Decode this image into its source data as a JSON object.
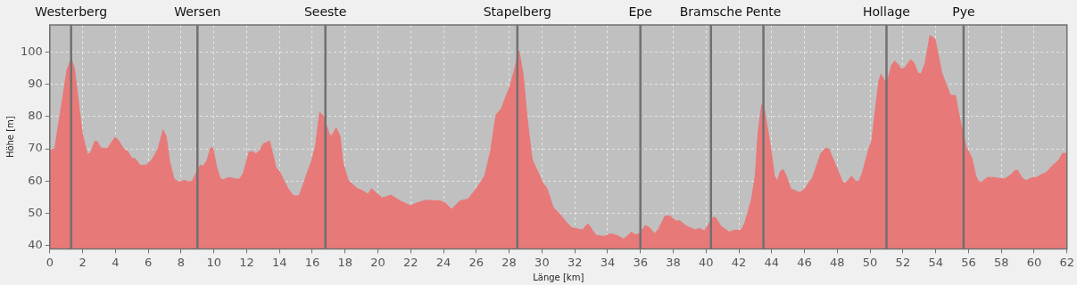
{
  "chart_data": {
    "type": "area",
    "xlabel": "Länge [km]",
    "ylabel": "Höhe [m]",
    "color": "#e87979",
    "grid": true,
    "legend": false,
    "xlim": [
      0,
      62
    ],
    "ylim": [
      38.9,
      108.5
    ],
    "xticks": [
      0,
      2,
      4,
      6,
      8,
      10,
      12,
      14,
      16,
      18,
      20,
      22,
      24,
      26,
      28,
      30,
      32,
      34,
      36,
      38,
      40,
      42,
      44,
      46,
      48,
      50,
      52,
      54,
      56,
      58,
      60,
      62
    ],
    "yticks": [
      40,
      50,
      60,
      70,
      80,
      90,
      100
    ],
    "x": [
      0,
      0.3,
      1.05,
      1.3,
      1.5,
      1.98,
      2.3,
      2.5,
      2.75,
      2.9,
      3.1,
      3.5,
      3.98,
      4.17,
      4.5,
      4.76,
      5.0,
      5.2,
      5.5,
      5.87,
      6.24,
      6.6,
      6.9,
      7.1,
      7.3,
      7.57,
      7.87,
      8.2,
      8.46,
      8.69,
      9.0,
      9.17,
      9.35,
      9.57,
      9.8,
      9.94,
      10.17,
      10.4,
      10.6,
      10.9,
      11.4,
      11.57,
      11.8,
      12.15,
      12.4,
      12.55,
      12.8,
      13.0,
      13.4,
      13.8,
      14.0,
      14.5,
      14.85,
      15.2,
      15.5,
      15.96,
      16.2,
      16.45,
      16.7,
      16.9,
      17.05,
      17.2,
      17.45,
      17.7,
      17.86,
      18.2,
      18.4,
      18.75,
      19.05,
      19.4,
      19.6,
      20.26,
      20.8,
      21.36,
      22.0,
      22.37,
      22.9,
      23.8,
      24.1,
      24.48,
      25.0,
      25.5,
      26.0,
      26.5,
      26.86,
      27.2,
      27.5,
      28.05,
      28.3,
      28.6,
      28.85,
      29.1,
      29.4,
      29.7,
      30.07,
      30.3,
      30.7,
      31.0,
      31.45,
      31.8,
      32.46,
      32.8,
      33.3,
      33.8,
      34.2,
      34.57,
      34.98,
      35.45,
      35.67,
      35.94,
      36.3,
      36.55,
      36.86,
      37.1,
      37.5,
      37.8,
      38.15,
      38.4,
      38.8,
      39.34,
      39.6,
      39.9,
      40.44,
      40.6,
      40.9,
      41.42,
      41.73,
      42.14,
      42.36,
      42.76,
      43.0,
      43.17,
      43.39,
      43.57,
      43.95,
      44.17,
      44.35,
      44.53,
      44.7,
      44.9,
      45.16,
      45.7,
      45.97,
      46.5,
      47.0,
      47.3,
      47.5,
      47.87,
      48.3,
      48.5,
      48.87,
      49.14,
      49.32,
      49.5,
      49.95,
      50.1,
      50.3,
      50.53,
      50.67,
      50.9,
      51.07,
      51.3,
      51.5,
      51.66,
      51.9,
      52.1,
      52.47,
      52.68,
      52.9,
      53.1,
      53.35,
      53.65,
      53.96,
      54.37,
      54.65,
      54.9,
      55.2,
      55.5,
      55.87,
      56.2,
      56.45,
      56.63,
      56.8,
      57.17,
      57.45,
      57.9,
      58.17,
      58.53,
      58.84,
      59.0,
      59.25,
      59.5,
      59.9,
      60.16,
      60.43,
      60.7,
      61.15,
      61.5,
      61.73,
      62.0
    ],
    "values": [
      69.6,
      70,
      94.6,
      98,
      95,
      74.8,
      68.2,
      69,
      72.4,
      72.2,
      70.3,
      70,
      73.6,
      72.7,
      70,
      69.1,
      67,
      67,
      64.9,
      64.9,
      66.7,
      70,
      75.9,
      73.8,
      66.3,
      60.6,
      59.7,
      60.2,
      59.7,
      60,
      63.4,
      64.9,
      64.6,
      66.3,
      70.2,
      70.3,
      64.4,
      60.6,
      60.4,
      61.1,
      60.6,
      60.6,
      62.5,
      69.1,
      69.1,
      68.4,
      69.4,
      71.5,
      72.4,
      63.9,
      63,
      57.8,
      55.4,
      55.4,
      59.7,
      66.3,
      71,
      81.4,
      80,
      76.7,
      74.3,
      74.1,
      76.5,
      73.8,
      65.8,
      60.1,
      59.2,
      57.6,
      57,
      55.9,
      57.6,
      54.7,
      55.6,
      53.8,
      52.3,
      53.2,
      54,
      53.8,
      53.2,
      51.2,
      53.8,
      54.4,
      57.6,
      61.5,
      69.1,
      80.6,
      82.3,
      89.4,
      94.1,
      100.4,
      93.2,
      79.5,
      66.7,
      63.4,
      59.2,
      57.8,
      51.6,
      50.2,
      47.4,
      45.5,
      44.8,
      46.7,
      43.1,
      42.8,
      43.6,
      43.1,
      41.9,
      44.1,
      43.3,
      43.6,
      46.2,
      45.5,
      43.6,
      45,
      49.1,
      49.1,
      47.6,
      47.6,
      46,
      44.8,
      45.3,
      44.5,
      48.8,
      48.5,
      46,
      44.1,
      44.7,
      44.7,
      46.9,
      54,
      61.5,
      74.8,
      83.8,
      81.9,
      70,
      61.5,
      59.9,
      63,
      63.6,
      61.5,
      57.6,
      56.4,
      57.3,
      61.1,
      68.6,
      70.2,
      69.9,
      65.3,
      60,
      59.2,
      61.5,
      59.8,
      60,
      62,
      70.5,
      72.4,
      81.4,
      91,
      93.2,
      91,
      91.3,
      95.8,
      97.3,
      96.5,
      94.8,
      95.1,
      97.7,
      96.7,
      93.7,
      93.2,
      96.5,
      105.2,
      104.1,
      93.7,
      89.9,
      86.6,
      86.6,
      78.6,
      70.5,
      67.2,
      61.5,
      59.7,
      59.7,
      61.1,
      61.1,
      60.8,
      60.6,
      61.7,
      63.3,
      63.3,
      61.1,
      60.1,
      61.1,
      61.1,
      62,
      62.5,
      64.9,
      66.5,
      68.6,
      68.6
    ],
    "ref_lines": [
      {
        "axis": "x",
        "value": 1.3,
        "label": "Westerberg",
        "color": "#707070"
      },
      {
        "axis": "x",
        "value": 9.0,
        "label": "Wersen",
        "color": "#707070"
      },
      {
        "axis": "x",
        "value": 16.8,
        "label": "Seeste",
        "color": "#707070"
      },
      {
        "axis": "x",
        "value": 28.5,
        "label": "Stapelberg",
        "color": "#707070"
      },
      {
        "axis": "x",
        "value": 36.0,
        "label": "Epe",
        "color": "#707070"
      },
      {
        "axis": "x",
        "value": 40.3,
        "label": "Bramsche",
        "color": "#707070"
      },
      {
        "axis": "x",
        "value": 43.5,
        "label": "Pente",
        "color": "#707070"
      },
      {
        "axis": "x",
        "value": 51.0,
        "label": "Hollage",
        "color": "#707070"
      },
      {
        "axis": "x",
        "value": 55.7,
        "label": "Pye",
        "color": "#707070"
      }
    ]
  }
}
